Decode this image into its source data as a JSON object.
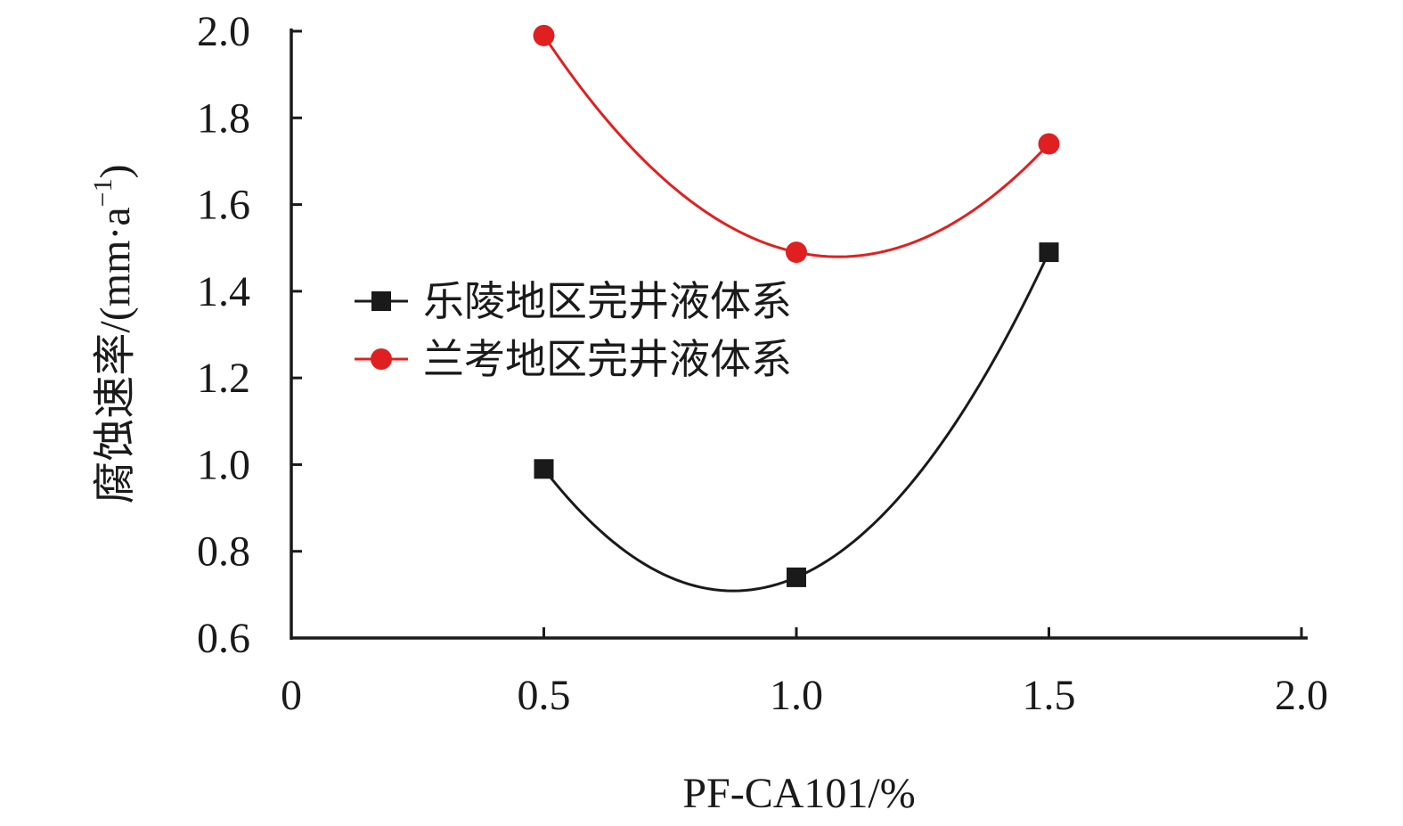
{
  "chart_data": {
    "type": "line",
    "xlabel": "PF-CA101/%",
    "ylabel": "腐蚀速率/(mm·a",
    "ylabel_sup": "−1",
    "ylabel_close": ")",
    "xlim": [
      0,
      2.0
    ],
    "ylim": [
      0.6,
      2.0
    ],
    "x_ticks": [
      0,
      0.5,
      1.0,
      1.5,
      2.0
    ],
    "x_tick_labels": [
      "0",
      "0.5",
      "1.0",
      "1.5",
      "2.0"
    ],
    "y_ticks": [
      0.6,
      0.8,
      1.0,
      1.2,
      1.4,
      1.6,
      1.8,
      2.0
    ],
    "y_tick_labels": [
      "0.6",
      "0.8",
      "1.0",
      "1.2",
      "1.4",
      "1.6",
      "1.8",
      "2.0"
    ],
    "grid": false,
    "legend_position": "center-left",
    "series": [
      {
        "name": "乐陵地区完井液体系",
        "x": [
          0.5,
          1.0,
          1.5
        ],
        "y": [
          0.99,
          0.74,
          1.49
        ],
        "color": "#1a1a1a",
        "marker": "square"
      },
      {
        "name": "兰考地区完井液体系",
        "x": [
          0.5,
          1.0,
          1.5
        ],
        "y": [
          1.99,
          1.49,
          1.74
        ],
        "color": "#e02020",
        "marker": "circle"
      }
    ]
  }
}
